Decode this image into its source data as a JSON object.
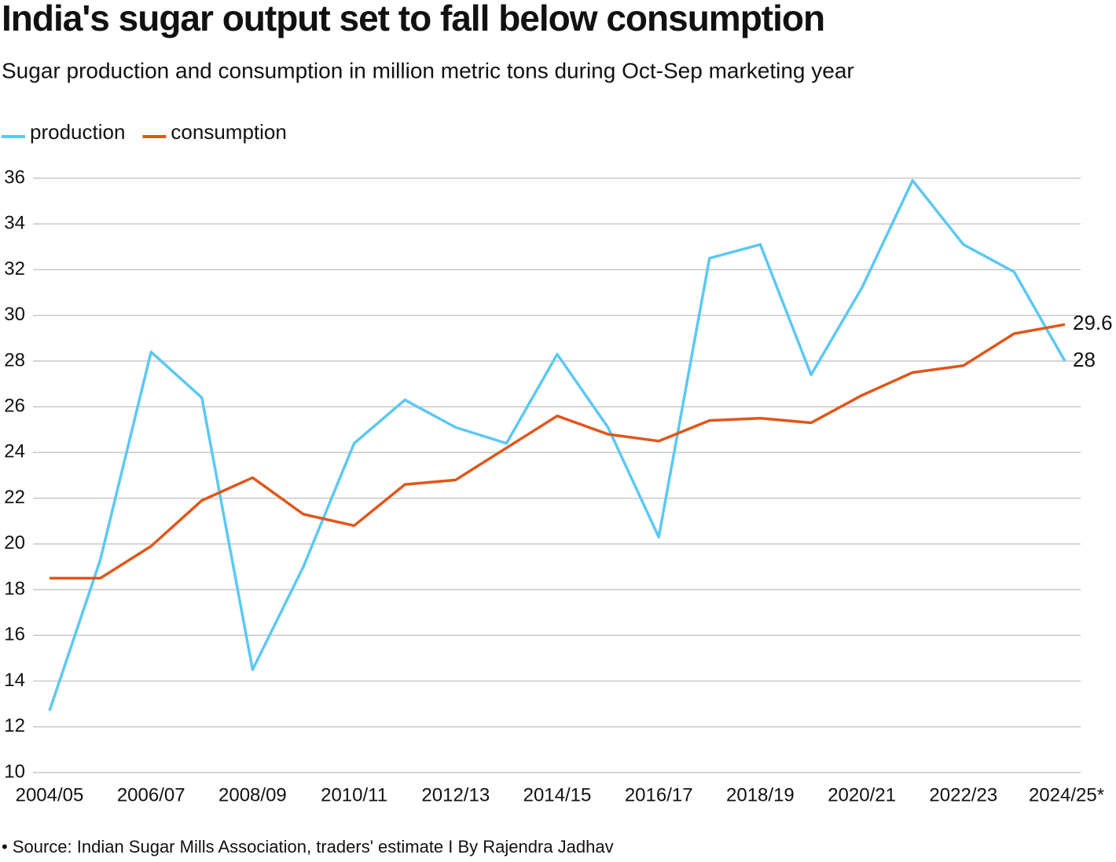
{
  "chart_data": {
    "type": "line",
    "title": "India's sugar output set to fall below consumption",
    "subtitle": "Sugar production and consumption in million metric tons during Oct-Sep marketing year",
    "source": "• Source: Indian Sugar Mills Association, traders' estimate I By Rajendra Jadhav",
    "categories": [
      "2004/05",
      null,
      "2006/07",
      null,
      "2008/09",
      null,
      "2010/11",
      null,
      "2012/13",
      null,
      "2014/15",
      null,
      "2016/17",
      null,
      "2018/19",
      null,
      "2020/21",
      null,
      "2022/23",
      null,
      "2024/25*"
    ],
    "series": [
      {
        "name": "production",
        "color": "#5bc8f5",
        "values": [
          12.7,
          19.3,
          28.4,
          26.4,
          14.5,
          19.0,
          24.4,
          26.3,
          25.1,
          24.4,
          28.3,
          25.1,
          20.3,
          32.5,
          33.1,
          27.4,
          31.2,
          35.9,
          33.1,
          31.9,
          28
        ]
      },
      {
        "name": "consumption",
        "color": "#e0561a",
        "values": [
          18.5,
          18.5,
          19.9,
          21.9,
          22.9,
          21.3,
          20.8,
          22.6,
          22.8,
          24.2,
          25.6,
          24.8,
          24.5,
          25.4,
          25.5,
          25.3,
          26.5,
          27.5,
          27.8,
          29.2,
          29.6
        ]
      }
    ],
    "ylim": [
      10,
      36
    ],
    "yticks": [
      10,
      12,
      14,
      16,
      18,
      20,
      22,
      24,
      26,
      28,
      30,
      32,
      34,
      36
    ],
    "grid": true,
    "legend": "top-left"
  }
}
